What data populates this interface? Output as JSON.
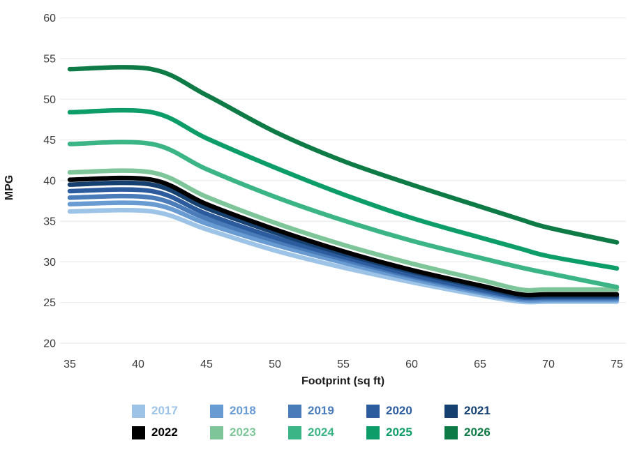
{
  "page": {
    "background": "#ffffff"
  },
  "chart_data": {
    "type": "line",
    "title": "",
    "xlabel": "Footprint (sq ft)",
    "ylabel": "MPG",
    "xlim": [
      35,
      75
    ],
    "ylim": [
      20,
      60
    ],
    "x_ticks": [
      35,
      40,
      45,
      50,
      55,
      60,
      65,
      70,
      75
    ],
    "y_ticks": [
      20,
      25,
      30,
      35,
      40,
      45,
      50,
      55,
      60
    ],
    "grid": "horizontal",
    "gridline_color": "#ebebeb",
    "tick_label_color": "#3b3b3b",
    "line_width": 6.5,
    "legend_position": "bottom",
    "footprints": [
      35,
      41,
      45,
      50,
      55,
      60,
      65,
      68,
      70,
      75
    ],
    "series": [
      {
        "name": "2017",
        "color": "#9DC3E6",
        "values": [
          36.2,
          36.2,
          34.0,
          31.4,
          29.3,
          27.5,
          25.9,
          25.1,
          25.1,
          25.1
        ]
      },
      {
        "name": "2018",
        "color": "#699BD3",
        "values": [
          37.1,
          37.1,
          34.7,
          32.1,
          29.9,
          27.9,
          26.2,
          25.3,
          25.3,
          25.3
        ]
      },
      {
        "name": "2019",
        "color": "#4A7CBA",
        "values": [
          37.9,
          37.9,
          35.3,
          32.6,
          30.3,
          28.2,
          26.4,
          25.5,
          25.5,
          25.5
        ]
      },
      {
        "name": "2020",
        "color": "#2C5C9E",
        "values": [
          38.7,
          38.7,
          35.9,
          33.0,
          30.6,
          28.4,
          26.6,
          25.65,
          25.65,
          25.65
        ]
      },
      {
        "name": "2021",
        "color": "#16406F",
        "values": [
          39.5,
          39.5,
          36.6,
          33.6,
          31.0,
          28.8,
          26.9,
          25.8,
          25.8,
          25.8
        ]
      },
      {
        "name": "2022",
        "color": "#000000",
        "values": [
          40.1,
          40.1,
          37.1,
          34.0,
          31.3,
          29.0,
          27.1,
          26.0,
          26.0,
          26.0
        ]
      },
      {
        "name": "2023",
        "color": "#7EC699",
        "values": [
          41.0,
          41.0,
          38.0,
          34.8,
          32.1,
          29.8,
          27.8,
          26.6,
          26.6,
          26.6
        ]
      },
      {
        "name": "2024",
        "color": "#3CB586",
        "values": [
          44.5,
          44.5,
          41.4,
          38.0,
          35.1,
          32.6,
          30.5,
          29.3,
          28.6,
          26.9
        ]
      },
      {
        "name": "2025",
        "color": "#0D9D68",
        "values": [
          48.4,
          48.4,
          45.2,
          41.6,
          38.3,
          35.4,
          33.0,
          31.6,
          30.7,
          29.2
        ]
      },
      {
        "name": "2026",
        "color": "#0E7A45",
        "values": [
          53.7,
          53.7,
          50.5,
          46.0,
          42.4,
          39.5,
          36.8,
          35.2,
          34.2,
          32.4
        ]
      }
    ],
    "legend_rows": [
      [
        "2017",
        "2018",
        "2019",
        "2020",
        "2021"
      ],
      [
        "2022",
        "2023",
        "2024",
        "2025",
        "2026"
      ]
    ]
  }
}
